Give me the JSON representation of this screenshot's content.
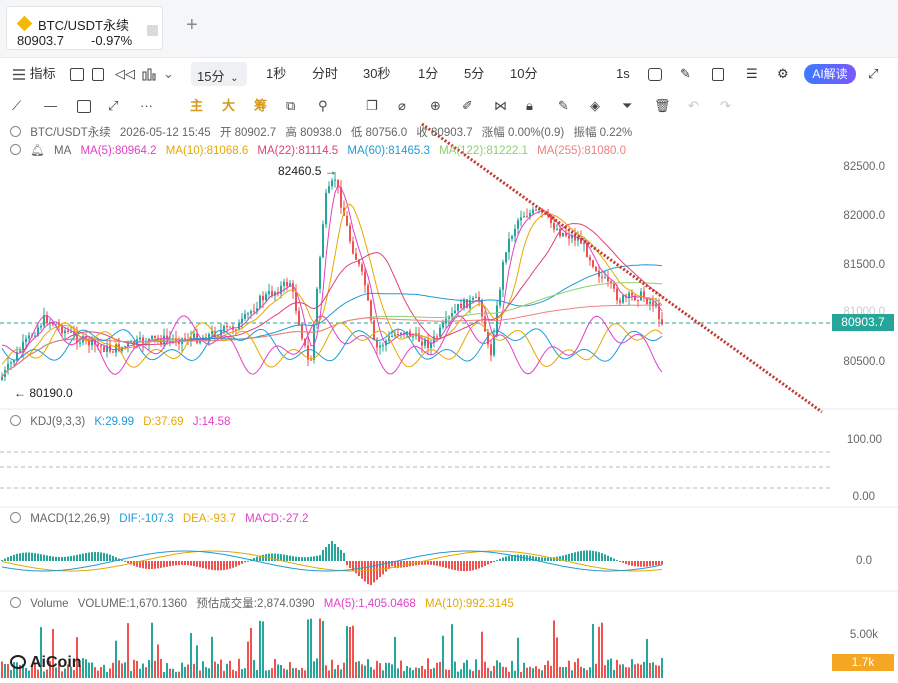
{
  "tab": {
    "symbol": "BTC/USDT永续",
    "price": "80903.7",
    "change": "-0.97%"
  },
  "toolbar": {
    "indicators_label": "指标",
    "interval_selected": "15分",
    "intervals": [
      "1秒",
      "分时",
      "30秒",
      "1分",
      "5分",
      "10分"
    ],
    "realtime_label": "1s",
    "ai_label": "AI解读"
  },
  "drawing_toolbar": {
    "main_label": "主",
    "big_label": "大",
    "chip_label": "筹"
  },
  "price_panel": {
    "info": {
      "symbol": "BTC/USDT永续",
      "datetime": "2026-05-12 15:45",
      "open": "开 80902.7",
      "high": "高 80938.0",
      "low": "低 80756.0",
      "close": "收 80903.7",
      "change": "涨幅 0.00%(0.9)",
      "amplitude": "振幅 0.22%"
    },
    "ma": {
      "label": "MA",
      "ma5": "MA(5):80964.2",
      "ma10": "MA(10):81068.6",
      "ma22": "MA(22):81114.5",
      "ma60": "MA(60):81465.3",
      "ma122": "MA(122):81222.1",
      "ma255": "MA(255):81080.0"
    },
    "axis": [
      "82500.0",
      "82000.0",
      "81500.0",
      "81000.0",
      "80500.0"
    ],
    "current_price": "80903.7",
    "high_marker": "82460.5",
    "low_marker": "80190.0",
    "colors": {
      "ma5": "#e040c8",
      "ma10": "#e6a800",
      "ma22": "#e0407a",
      "ma60": "#1e9bd7",
      "ma122": "#8bd16b",
      "ma255": "#f08080",
      "up": "#26a69a",
      "down": "#ef5350",
      "trendline": "#c0392b"
    }
  },
  "kdj": {
    "label": "KDJ(9,3,3)",
    "k": "K:29.99",
    "d": "D:37.69",
    "j": "J:14.58",
    "axis": [
      "100.00",
      "0.00"
    ]
  },
  "macd": {
    "label": "MACD(12,26,9)",
    "dif": "DIF:-107.3",
    "dea": "DEA:-93.7",
    "macd": "MACD:-27.2",
    "axis": [
      "0.0"
    ]
  },
  "volume": {
    "label": "Volume",
    "volume": "VOLUME:1,670.1360",
    "estimated": "预估成交量:2,874.0390",
    "ma5": "MA(5):1,405.0468",
    "ma10": "MA(10):992.3145",
    "axis": [
      "5.00k"
    ],
    "current": "1.7k"
  },
  "brand": "AiCoin"
}
